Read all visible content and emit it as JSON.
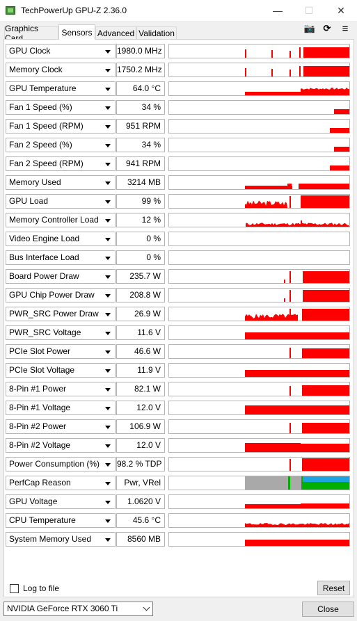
{
  "window": {
    "title": "TechPowerUp GPU-Z 2.36.0",
    "minimize_glyph": "—",
    "maximize_glyph": "☐",
    "close_glyph": "✕"
  },
  "tabs": [
    {
      "label": "Graphics Card",
      "active": false
    },
    {
      "label": "Sensors",
      "active": true
    },
    {
      "label": "Advanced",
      "active": false
    },
    {
      "label": "Validation",
      "active": false
    }
  ],
  "toolbar": {
    "icons": [
      "camera-icon",
      "refresh-icon",
      "hamburger-menu-icon"
    ],
    "camera_glyph": "📷",
    "refresh_glyph": "⟳",
    "menu_glyph": "≡"
  },
  "colors": {
    "graph_red": "#ff0000",
    "perfcap_gray": "#a9a9a9",
    "perfcap_green": "#00b000",
    "perfcap_blue": "#1fa3e0"
  },
  "sensors": [
    {
      "label": "GPU Clock",
      "value": "1980.0 MHz"
    },
    {
      "label": "Memory Clock",
      "value": "1750.2 MHz"
    },
    {
      "label": "GPU Temperature",
      "value": "64.0 °C"
    },
    {
      "label": "Fan 1 Speed (%)",
      "value": "34 %"
    },
    {
      "label": "Fan 1 Speed (RPM)",
      "value": "951 RPM"
    },
    {
      "label": "Fan 2 Speed (%)",
      "value": "34 %"
    },
    {
      "label": "Fan 2 Speed (RPM)",
      "value": "941 RPM"
    },
    {
      "label": "Memory Used",
      "value": "3214 MB"
    },
    {
      "label": "GPU Load",
      "value": "99 %"
    },
    {
      "label": "Memory Controller Load",
      "value": "12 %"
    },
    {
      "label": "Video Engine Load",
      "value": "0 %"
    },
    {
      "label": "Bus Interface Load",
      "value": "0 %"
    },
    {
      "label": "Board Power Draw",
      "value": "235.7 W"
    },
    {
      "label": "GPU Chip Power Draw",
      "value": "208.8 W"
    },
    {
      "label": "PWR_SRC Power Draw",
      "value": "26.9 W"
    },
    {
      "label": "PWR_SRC Voltage",
      "value": "11.6 V"
    },
    {
      "label": "PCIe Slot Power",
      "value": "46.6 W"
    },
    {
      "label": "PCIe Slot Voltage",
      "value": "11.9 V"
    },
    {
      "label": "8-Pin #1 Power",
      "value": "82.1 W"
    },
    {
      "label": "8-Pin #1 Voltage",
      "value": "12.0 V"
    },
    {
      "label": "8-Pin #2 Power",
      "value": "106.9 W"
    },
    {
      "label": "8-Pin #2 Voltage",
      "value": "12.0 V"
    },
    {
      "label": "Power Consumption (%)",
      "value": "98.2 % TDP"
    },
    {
      "label": "PerfCap Reason",
      "value": "Pwr, VRel"
    },
    {
      "label": "GPU Voltage",
      "value": "1.0620 V"
    },
    {
      "label": "CPU Temperature",
      "value": "45.6 °C"
    },
    {
      "label": "System Memory Used",
      "value": "8560 MB"
    }
  ],
  "footer": {
    "log_to_file_label": "Log to file",
    "log_to_file_checked": false,
    "reset_label": "Reset",
    "gpu_selected": "NVIDIA GeForce RTX 3060 Ti",
    "close_label": "Close"
  }
}
